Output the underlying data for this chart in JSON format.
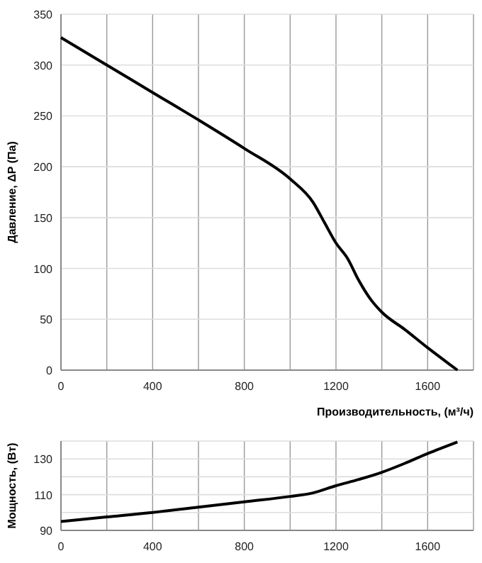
{
  "chart_data": [
    {
      "type": "line",
      "ylabel": "Давление, ΔP (Па)",
      "xlabel": "Производительность, (м³/ч)",
      "color": "#000000",
      "grid": true,
      "x": [
        0,
        200,
        400,
        600,
        800,
        1000,
        1100,
        1150,
        1200,
        1250,
        1300,
        1350,
        1400,
        1500,
        1600,
        1700,
        1730
      ],
      "values": [
        327,
        300,
        273,
        246,
        218,
        188,
        165,
        145,
        125,
        110,
        88,
        70,
        57,
        40,
        22,
        5,
        0
      ],
      "xlim": [
        0,
        1800
      ],
      "xticks": [
        0,
        {
          "value": 200,
          "label": null
        },
        400,
        {
          "value": 600,
          "label": null
        },
        800,
        {
          "value": 1000,
          "label": null
        },
        1200,
        {
          "value": 1400,
          "label": null
        },
        1600,
        {
          "value": 1800,
          "label": null
        }
      ],
      "ylim": [
        0,
        350
      ],
      "yticks": [
        0,
        50,
        100,
        150,
        200,
        250,
        300,
        350
      ]
    },
    {
      "type": "line",
      "ylabel": "Мощность, (Вт)",
      "color": "#000000",
      "grid": true,
      "x": [
        0,
        200,
        400,
        600,
        800,
        1000,
        1100,
        1200,
        1300,
        1400,
        1500,
        1600,
        1730
      ],
      "values": [
        95,
        97.5,
        100,
        103,
        106,
        109,
        111,
        115,
        118.5,
        122.5,
        127.5,
        133,
        139.5
      ],
      "xlim": [
        0,
        1800
      ],
      "xticks": [
        0,
        {
          "value": 200,
          "label": null
        },
        400,
        {
          "value": 600,
          "label": null
        },
        800,
        {
          "value": 1000,
          "label": null
        },
        1200,
        {
          "value": 1400,
          "label": null
        },
        1600,
        {
          "value": 1800,
          "label": null
        }
      ],
      "ylim": [
        90,
        140
      ],
      "yticks": [
        90,
        {
          "value": 100,
          "label": null
        },
        110,
        {
          "value": 120,
          "label": null
        },
        130,
        {
          "value": 140,
          "label": null
        }
      ]
    }
  ]
}
